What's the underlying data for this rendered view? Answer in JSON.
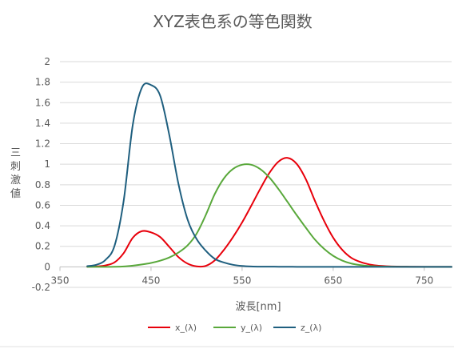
{
  "chart_data": {
    "type": "line",
    "title": "XYZ表色系の等色関数",
    "xlabel": "波長[nm]",
    "ylabel": "三刺激値",
    "xlim": [
      350,
      780
    ],
    "ylim": [
      -0.2,
      2
    ],
    "x_ticks": [
      "350",
      "450",
      "550",
      "650",
      "750"
    ],
    "y_ticks": [
      "-0.2",
      "0",
      "0.2",
      "0.4",
      "0.6",
      "0.8",
      "1",
      "1.2",
      "1.4",
      "1.6",
      "1.8",
      "2"
    ],
    "grid": "horizontal",
    "legend_position": "bottom",
    "x": [
      380,
      390,
      400,
      410,
      420,
      430,
      440,
      450,
      460,
      470,
      480,
      490,
      500,
      510,
      520,
      530,
      540,
      550,
      560,
      570,
      580,
      590,
      600,
      610,
      620,
      630,
      640,
      650,
      660,
      670,
      680,
      690,
      700,
      720,
      740,
      760,
      780
    ],
    "series": [
      {
        "name": "x_(λ)",
        "color": "#e8000b",
        "values": [
          0.001,
          0.004,
          0.014,
          0.044,
          0.134,
          0.284,
          0.348,
          0.336,
          0.291,
          0.195,
          0.096,
          0.032,
          0.005,
          0.009,
          0.063,
          0.165,
          0.29,
          0.433,
          0.595,
          0.762,
          0.916,
          1.026,
          1.062,
          1.003,
          0.854,
          0.642,
          0.448,
          0.284,
          0.165,
          0.087,
          0.047,
          0.023,
          0.011,
          0.003,
          0.001,
          0.0,
          0.0
        ]
      },
      {
        "name": "y_(λ)",
        "color": "#59a83b",
        "values": [
          0.0,
          0.0,
          0.0,
          0.001,
          0.004,
          0.012,
          0.023,
          0.038,
          0.06,
          0.091,
          0.139,
          0.208,
          0.323,
          0.503,
          0.71,
          0.862,
          0.954,
          0.995,
          0.995,
          0.952,
          0.87,
          0.757,
          0.631,
          0.503,
          0.381,
          0.265,
          0.175,
          0.107,
          0.061,
          0.032,
          0.017,
          0.008,
          0.004,
          0.001,
          0.0,
          0.0,
          0.0
        ]
      },
      {
        "name": "z_(λ)",
        "color": "#1f5f7f",
        "values": [
          0.007,
          0.02,
          0.068,
          0.207,
          0.646,
          1.386,
          1.747,
          1.772,
          1.669,
          1.288,
          0.813,
          0.465,
          0.272,
          0.158,
          0.078,
          0.042,
          0.02,
          0.009,
          0.004,
          0.002,
          0.002,
          0.001,
          0.001,
          0.0,
          0.0,
          0.0,
          0.0,
          0.0,
          0.0,
          0.0,
          0.0,
          0.0,
          0.0,
          0.0,
          0.0,
          0.0,
          0.0
        ]
      }
    ]
  }
}
